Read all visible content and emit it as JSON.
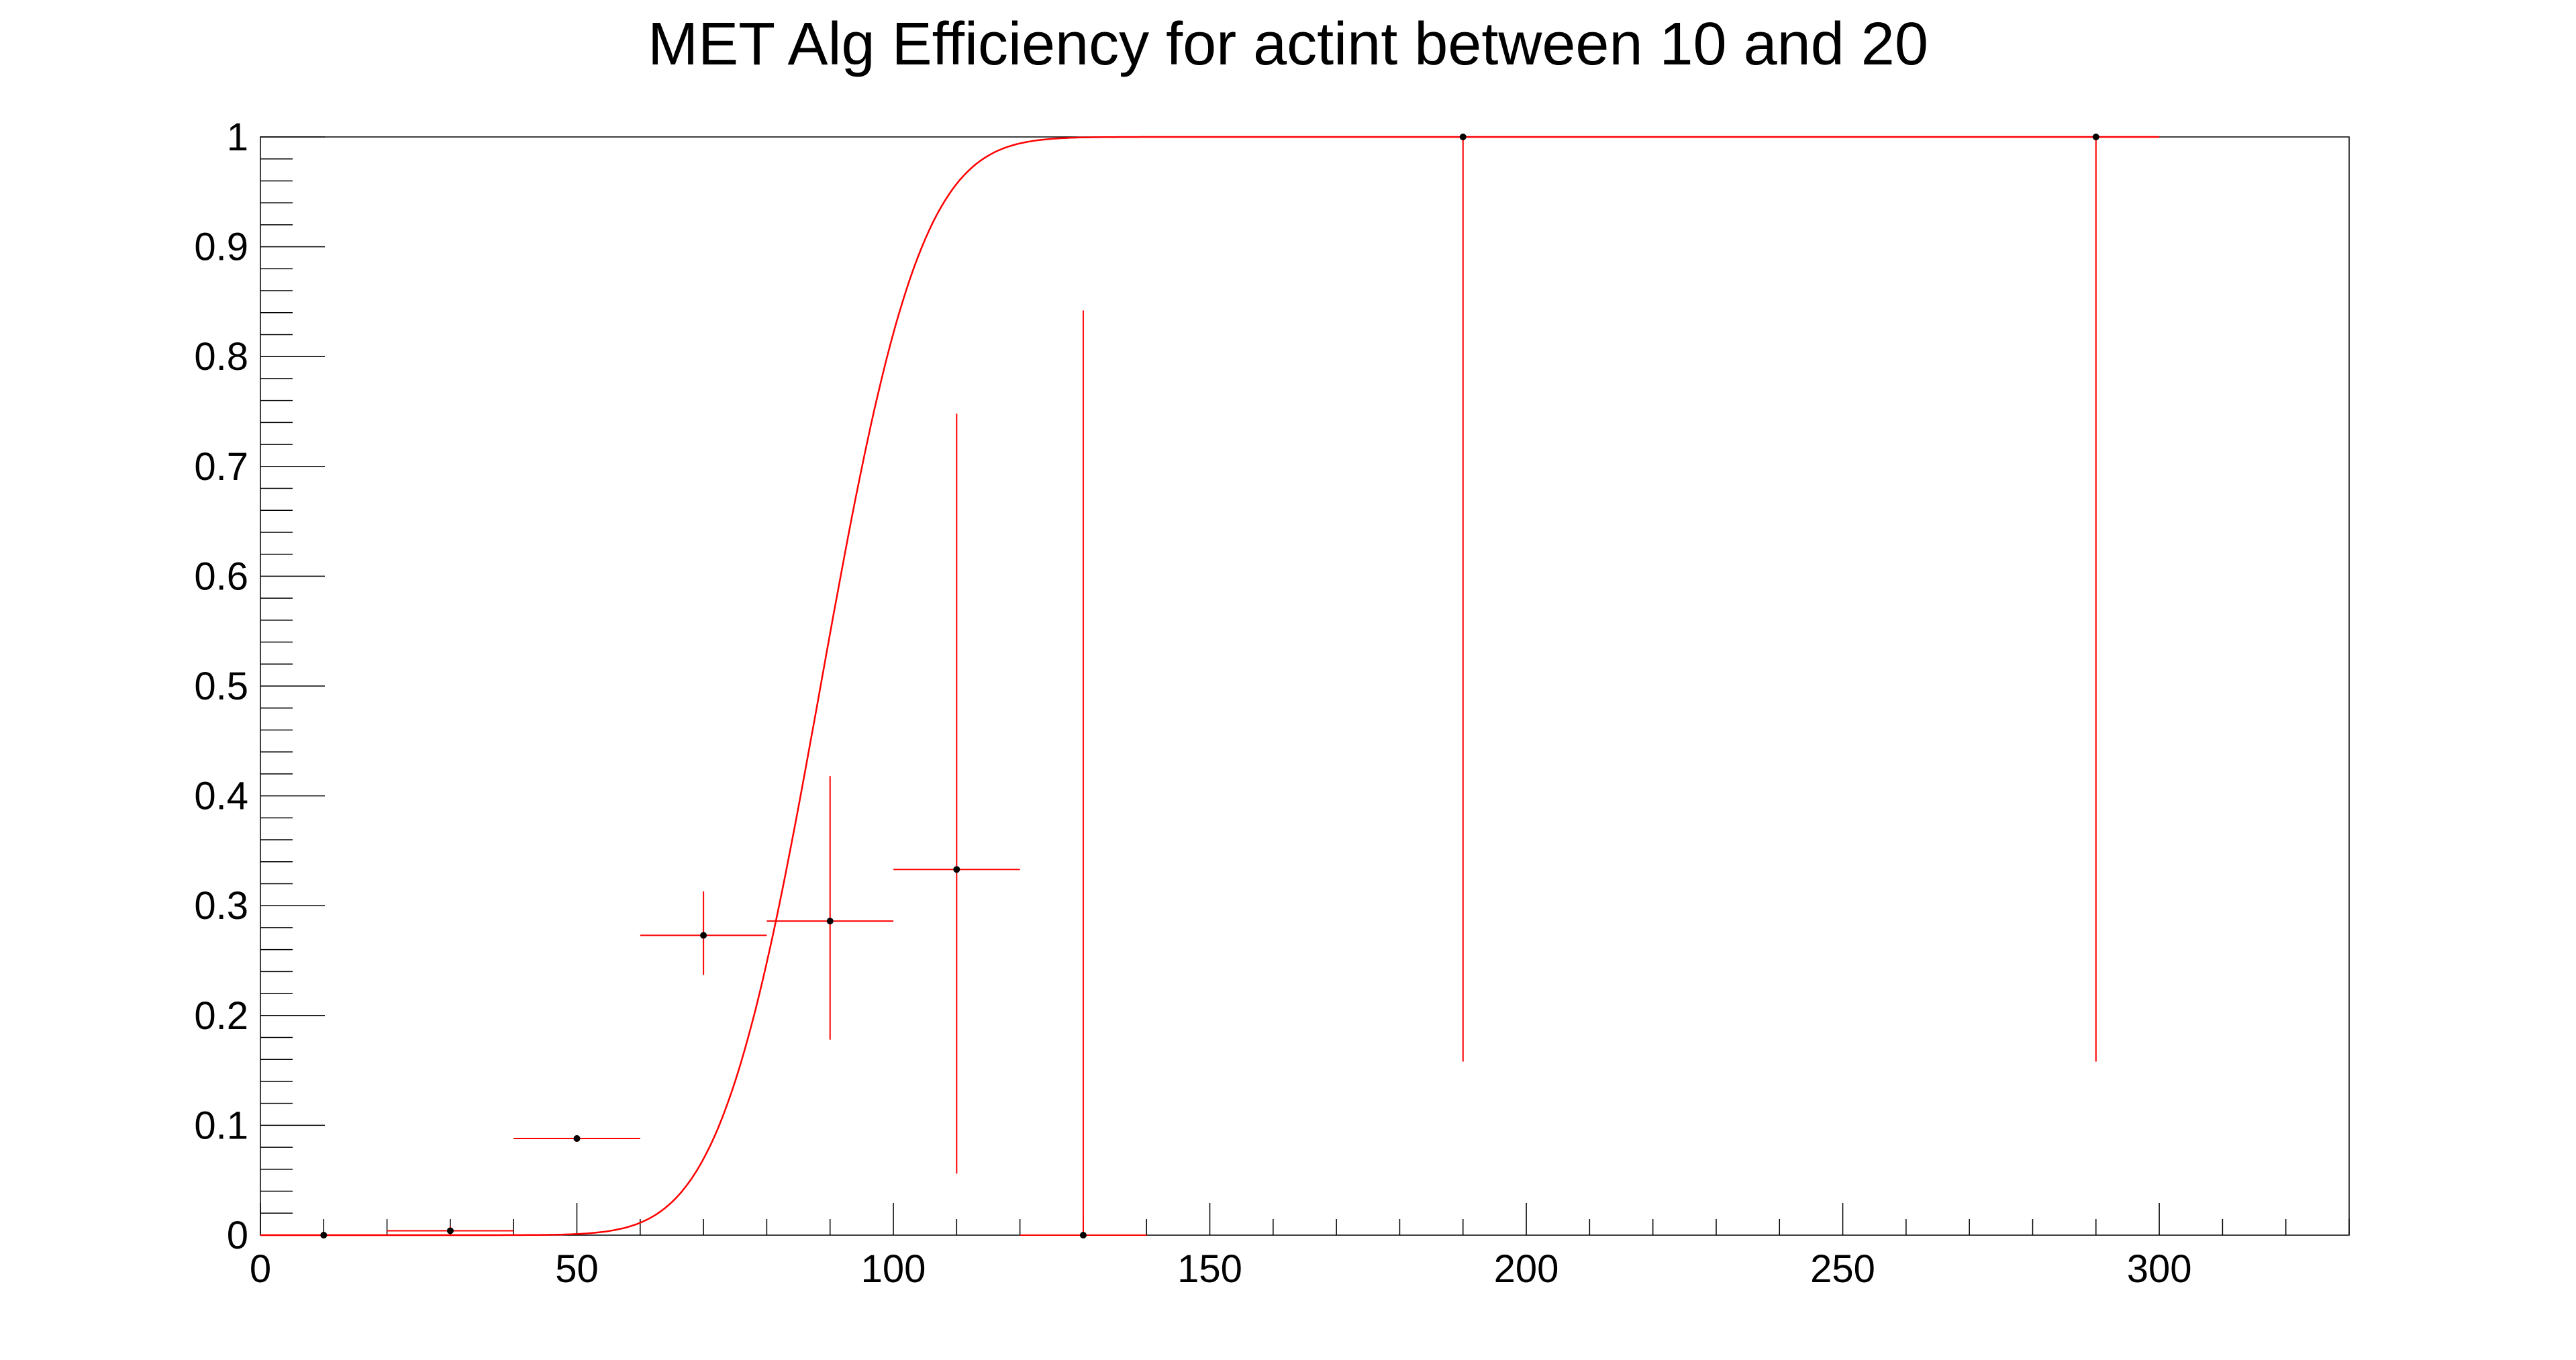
{
  "chart_data": {
    "type": "scatter",
    "title": "MET Alg Efficiency for actint between 10 and 20",
    "xlabel": "",
    "ylabel": "",
    "xlim": [
      0,
      330
    ],
    "ylim": [
      0,
      1
    ],
    "x_ticks": [
      "0",
      "50",
      "100",
      "150",
      "200",
      "250",
      "300"
    ],
    "y_ticks": [
      "0",
      "0.1",
      "0.2",
      "0.3",
      "0.4",
      "0.5",
      "0.6",
      "0.7",
      "0.8",
      "0.9",
      "1"
    ],
    "grid": false,
    "legend": "none",
    "colors": {
      "points": "#000000",
      "error_bars": "#ff0000",
      "fit": "#ff0000",
      "frame": "#000000"
    },
    "series": [
      {
        "points": [
          {
            "x": 10,
            "y": 0.0,
            "xerr": 10,
            "ylow": 0.0,
            "yhigh": 0.0
          },
          {
            "x": 30,
            "y": 0.004,
            "xerr": 10,
            "ylow": 0.001,
            "yhigh": 0.008
          },
          {
            "x": 50,
            "y": 0.088,
            "xerr": 10,
            "ylow": 0.085,
            "yhigh": 0.091
          },
          {
            "x": 70,
            "y": 0.273,
            "xerr": 10,
            "ylow": 0.237,
            "yhigh": 0.313
          },
          {
            "x": 90,
            "y": 0.286,
            "xerr": 10,
            "ylow": 0.178,
            "yhigh": 0.418
          },
          {
            "x": 110,
            "y": 0.333,
            "xerr": 10,
            "ylow": 0.056,
            "yhigh": 0.748
          },
          {
            "x": 130,
            "y": 0.0,
            "xerr": 10,
            "ylow": 0.0,
            "yhigh": 0.842
          },
          {
            "x": 190,
            "y": 1.0,
            "xerr": 0,
            "ylow": 0.158,
            "yhigh": 1.0
          },
          {
            "x": 290,
            "y": 1.0,
            "xerr": 0,
            "ylow": 0.158,
            "yhigh": 1.0
          }
        ]
      }
    ],
    "fit": {
      "function": "erf",
      "mean": 88.5,
      "sigma": 12.5,
      "xrange": [
        0,
        300
      ]
    }
  }
}
